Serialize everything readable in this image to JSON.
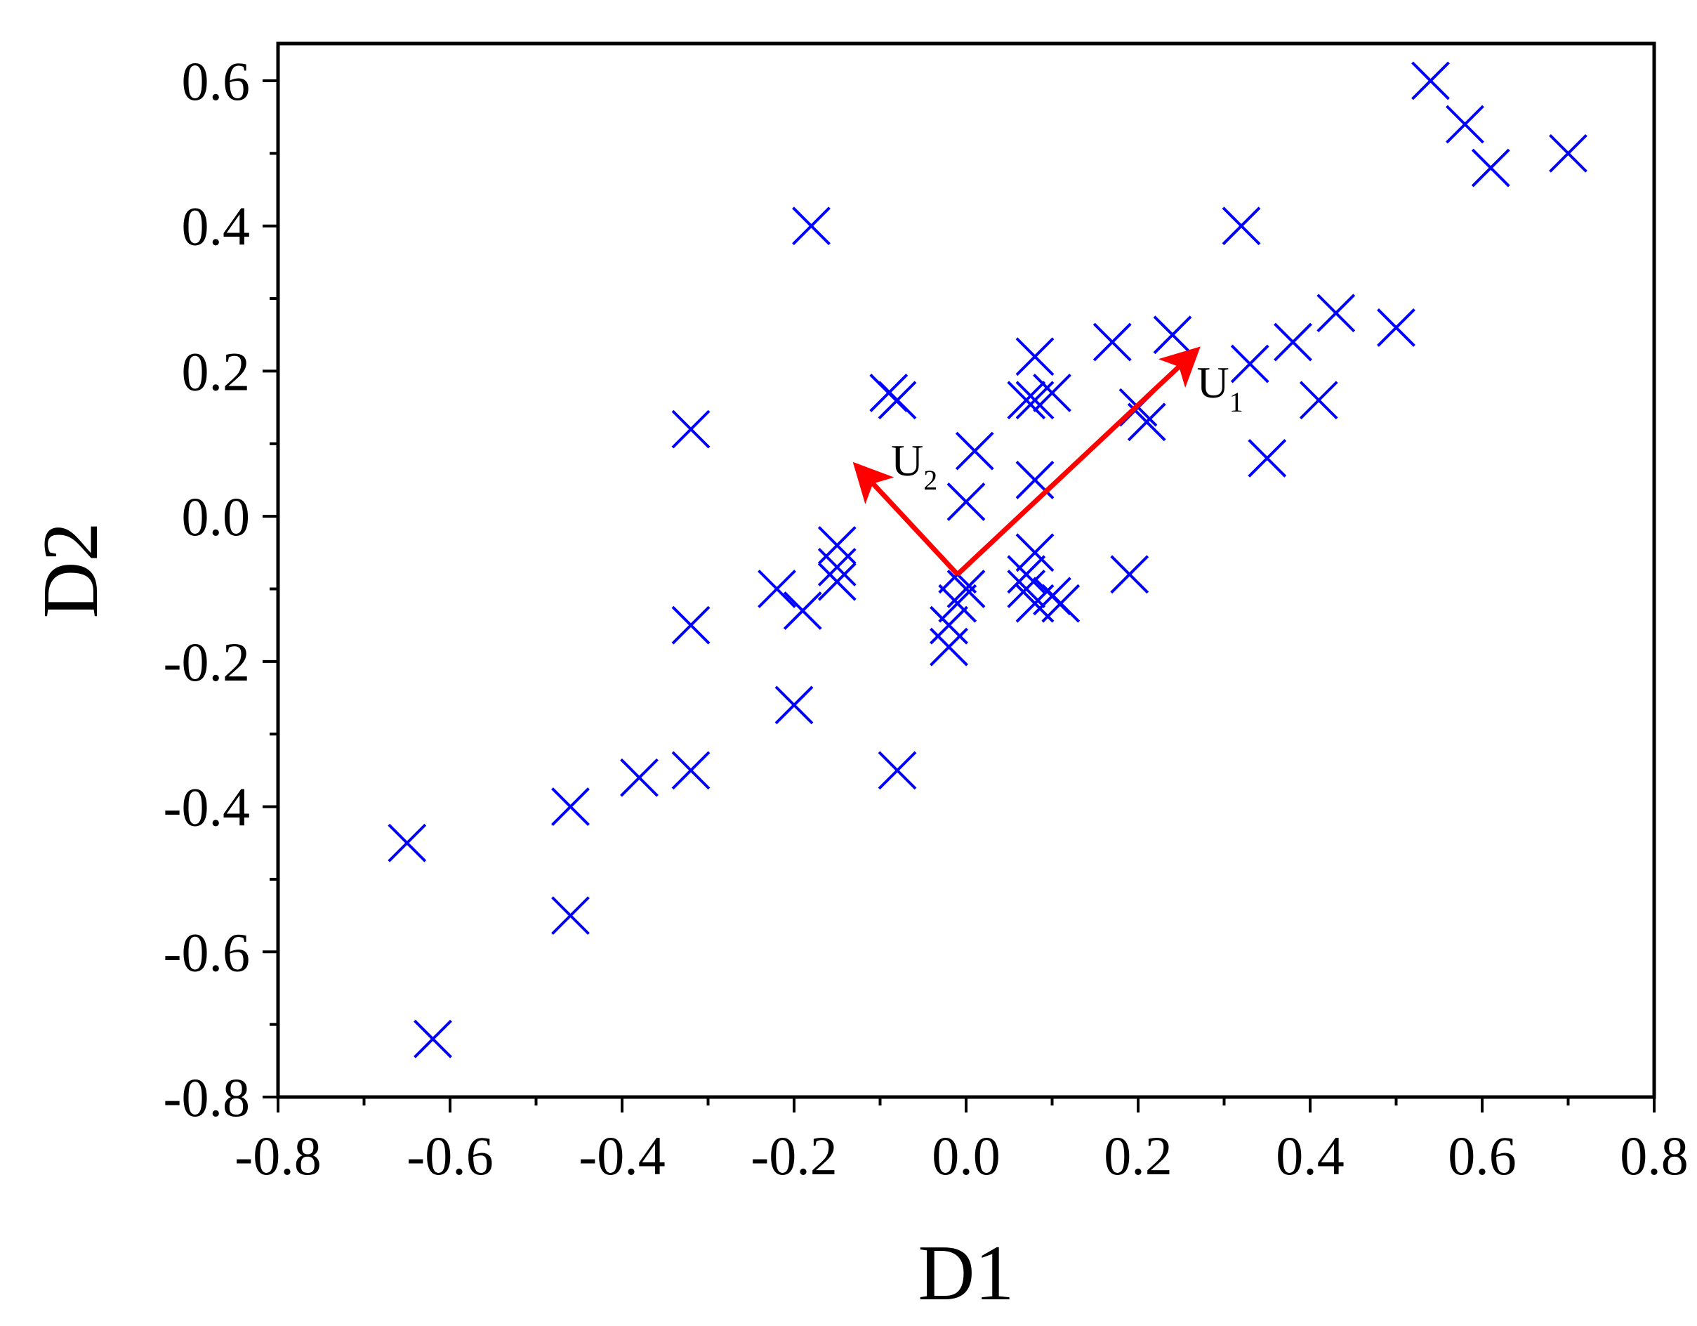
{
  "chart_data": {
    "type": "scatter",
    "title": "",
    "xlabel": "D1",
    "ylabel": "D2",
    "xlim": [
      -0.8,
      0.8
    ],
    "ylim": [
      -0.8,
      0.65
    ],
    "x_ticks": [
      -0.8,
      -0.6,
      -0.4,
      -0.2,
      0.0,
      0.2,
      0.4,
      0.6,
      0.8
    ],
    "x_tick_labels": [
      "-0.8",
      "-0.6",
      "-0.4",
      "-0.2",
      "0.0",
      "0.2",
      "0.4",
      "0.6",
      "0.8"
    ],
    "y_ticks": [
      -0.8,
      -0.6,
      -0.4,
      -0.2,
      0.0,
      0.2,
      0.4,
      0.6
    ],
    "y_tick_labels": [
      "-0.8",
      "-0.6",
      "-0.4",
      "-0.2",
      "0.0",
      "0.2",
      "0.4",
      "0.6"
    ],
    "grid": false,
    "marker": "x",
    "marker_color": "#0000ff",
    "points": [
      {
        "x": 0.54,
        "y": 0.6
      },
      {
        "x": 0.58,
        "y": 0.54
      },
      {
        "x": 0.61,
        "y": 0.48
      },
      {
        "x": 0.7,
        "y": 0.5
      },
      {
        "x": -0.18,
        "y": 0.4
      },
      {
        "x": 0.32,
        "y": 0.4
      },
      {
        "x": 0.43,
        "y": 0.28
      },
      {
        "x": 0.5,
        "y": 0.26
      },
      {
        "x": 0.24,
        "y": 0.25
      },
      {
        "x": 0.17,
        "y": 0.24
      },
      {
        "x": 0.38,
        "y": 0.24
      },
      {
        "x": 0.33,
        "y": 0.21
      },
      {
        "x": 0.08,
        "y": 0.22
      },
      {
        "x": -0.09,
        "y": 0.17
      },
      {
        "x": -0.08,
        "y": 0.16
      },
      {
        "x": 0.07,
        "y": 0.16
      },
      {
        "x": 0.08,
        "y": 0.16
      },
      {
        "x": 0.1,
        "y": 0.17
      },
      {
        "x": 0.41,
        "y": 0.16
      },
      {
        "x": 0.2,
        "y": 0.15
      },
      {
        "x": 0.21,
        "y": 0.13
      },
      {
        "x": -0.32,
        "y": 0.12
      },
      {
        "x": 0.01,
        "y": 0.09
      },
      {
        "x": 0.35,
        "y": 0.08
      },
      {
        "x": 0.08,
        "y": 0.05
      },
      {
        "x": 0.0,
        "y": 0.02
      },
      {
        "x": -0.15,
        "y": -0.04
      },
      {
        "x": -0.15,
        "y": -0.07
      },
      {
        "x": 0.08,
        "y": -0.05
      },
      {
        "x": 0.19,
        "y": -0.08
      },
      {
        "x": 0.07,
        "y": -0.08
      },
      {
        "x": -0.01,
        "y": -0.08
      },
      {
        "x": -0.15,
        "y": -0.09
      },
      {
        "x": -0.22,
        "y": -0.1
      },
      {
        "x": 0.07,
        "y": -0.1
      },
      {
        "x": 0.0,
        "y": -0.1
      },
      {
        "x": -0.01,
        "y": -0.12
      },
      {
        "x": 0.08,
        "y": -0.12
      },
      {
        "x": 0.1,
        "y": -0.11
      },
      {
        "x": 0.11,
        "y": -0.12
      },
      {
        "x": -0.19,
        "y": -0.13
      },
      {
        "x": -0.02,
        "y": -0.15
      },
      {
        "x": -0.32,
        "y": -0.15
      },
      {
        "x": -0.02,
        "y": -0.18
      },
      {
        "x": -0.2,
        "y": -0.26
      },
      {
        "x": -0.32,
        "y": -0.35
      },
      {
        "x": -0.08,
        "y": -0.35
      },
      {
        "x": -0.38,
        "y": -0.36
      },
      {
        "x": -0.46,
        "y": -0.4
      },
      {
        "x": -0.65,
        "y": -0.45
      },
      {
        "x": -0.46,
        "y": -0.55
      },
      {
        "x": -0.62,
        "y": -0.72
      }
    ],
    "annotations": [
      {
        "type": "arrow",
        "from": [
          -0.01,
          -0.08
        ],
        "to": [
          0.26,
          0.22
        ],
        "label": "U",
        "subscript": "1",
        "color": "#ff0000"
      },
      {
        "type": "arrow",
        "from": [
          -0.01,
          -0.08
        ],
        "to": [
          -0.12,
          0.06
        ],
        "label": "U",
        "subscript": "2",
        "color": "#ff0000"
      }
    ]
  }
}
